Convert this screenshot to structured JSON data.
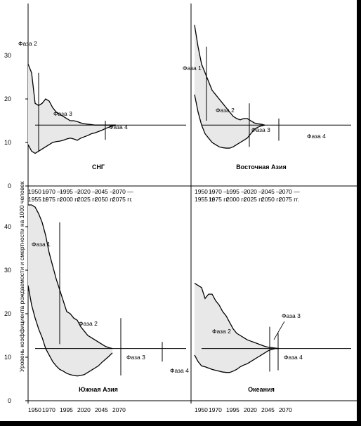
{
  "chart_data": {
    "type": "area",
    "y_axis_label": "Уровень коэффициента рождаемости и смертности на 1000 человек",
    "y_ticks": [
      0,
      10,
      20,
      30,
      40
    ],
    "y_ticks_top_extra": [
      30
    ],
    "x_ticks_labels_top": [
      {
        "upper": "1950 —",
        "lower": "1955 гг."
      },
      {
        "upper": "1970 —",
        "lower": "1975 гг."
      },
      {
        "upper": "1995 —",
        "lower": "2000 гг."
      },
      {
        "upper": "2020 —",
        "lower": "2025 гг."
      },
      {
        "upper": "2045 —",
        "lower": "2050 гг."
      },
      {
        "upper": "2070 —",
        "lower": "2075 гг."
      }
    ],
    "x_ticks_labels_bottom": [
      "1950",
      "1970",
      "1995",
      "2020",
      "2045",
      "2070"
    ],
    "colors": {
      "fill": "#e8e8e8",
      "background": "#ffffff",
      "line": "#000000"
    },
    "panels": [
      {
        "name": "СНГ",
        "x": [
          1950,
          1955,
          1960,
          1965,
          1970,
          1975,
          1980,
          1985,
          1990,
          1995,
          2000,
          2005,
          2010,
          2015,
          2020,
          2025,
          2030,
          2035,
          2040,
          2045,
          2050,
          2055,
          2060,
          2065,
          2070,
          2075
        ],
        "birth_rate": [
          28,
          26,
          19,
          18.5,
          19,
          20,
          19.5,
          18,
          17,
          16.5,
          16,
          15.5,
          15,
          15,
          14.8,
          14.5,
          14.3,
          14.2,
          14.1,
          14,
          14,
          14,
          14,
          14,
          14,
          14
        ],
        "death_rate": [
          9.5,
          8,
          7.5,
          8,
          8.5,
          9,
          9.5,
          10,
          10.2,
          10.3,
          10.5,
          10.8,
          11,
          10.8,
          10.5,
          11,
          11.3,
          11.6,
          12,
          12.2,
          12.5,
          12.8,
          13.2,
          13.5,
          13.8,
          14
        ],
        "phase_labels": [
          "Фаза 2",
          "Фаза 3",
          "Фаза 4"
        ]
      },
      {
        "name": "Восточная Азия",
        "x": [
          1950,
          1955,
          1960,
          1965,
          1970,
          1975,
          1980,
          1985,
          1990,
          1995,
          2000,
          2005,
          2010,
          2015,
          2020,
          2025,
          2030,
          2035,
          2040,
          2045,
          2050
        ],
        "birth_rate": [
          37,
          32,
          28,
          26,
          24,
          22,
          21,
          20,
          19,
          18,
          17,
          16,
          15.5,
          15.2,
          15.5,
          15.5,
          15,
          14.5,
          14.3,
          14.2,
          14
        ],
        "death_rate": [
          21,
          17,
          14,
          12,
          11,
          10,
          9.5,
          9,
          8.8,
          8.7,
          8.7,
          9,
          9.5,
          10,
          10.5,
          11,
          12,
          13,
          13.5,
          13.8,
          14
        ],
        "phase_labels": [
          "Фаза 1",
          "Фаза 2",
          "Фаза 3",
          "Фаза 4"
        ]
      },
      {
        "name": "Южная Азия",
        "x": [
          1950,
          1955,
          1960,
          1965,
          1970,
          1975,
          1980,
          1985,
          1990,
          1995,
          2000,
          2005,
          2010,
          2015,
          2020,
          2025,
          2030,
          2035,
          2040,
          2045,
          2050,
          2055,
          2060,
          2065,
          2070
        ],
        "birth_rate": [
          45,
          45,
          44.5,
          43,
          41,
          38,
          34,
          31,
          28,
          25.5,
          23,
          20.5,
          20,
          19,
          18.5,
          17,
          16,
          15,
          14.5,
          14,
          13.5,
          13,
          12.5,
          12.2,
          12
        ],
        "death_rate": [
          26.5,
          22,
          19,
          16.5,
          14.5,
          12,
          10.5,
          9,
          8,
          7.2,
          6.8,
          6.3,
          6,
          5.8,
          5.7,
          5.8,
          6,
          6.5,
          7,
          7.5,
          8,
          8.8,
          9.5,
          10.2,
          11
        ],
        "phase_labels": [
          "Фаза 1",
          "Фаза 2",
          "Фаза 3",
          "Фаза 4"
        ]
      },
      {
        "name": "Океания",
        "x": [
          1950,
          1955,
          1960,
          1965,
          1970,
          1975,
          1980,
          1985,
          1990,
          1995,
          2000,
          2005,
          2010,
          2015,
          2020,
          2025,
          2030,
          2035,
          2040,
          2045,
          2050,
          2055,
          2060,
          2065,
          2070
        ],
        "birth_rate": [
          27,
          26.5,
          26,
          23.5,
          24.5,
          24.5,
          23,
          22,
          20.5,
          19.5,
          18,
          16.5,
          15.5,
          15,
          14.5,
          14,
          13.7,
          13.4,
          13.1,
          12.8,
          12.5,
          12.3,
          12.2,
          12.1,
          12
        ],
        "death_rate": [
          10.5,
          9,
          8,
          7.8,
          7.5,
          7.2,
          7,
          6.8,
          6.6,
          6.5,
          6.5,
          6.8,
          7.2,
          7.8,
          8.2,
          8.5,
          9,
          9.5,
          10,
          10.5,
          11,
          11.5,
          11.8,
          12,
          12
        ],
        "phase_labels": [
          "Фаза 2",
          "Фаза 3",
          "Фаза 4"
        ]
      }
    ]
  }
}
